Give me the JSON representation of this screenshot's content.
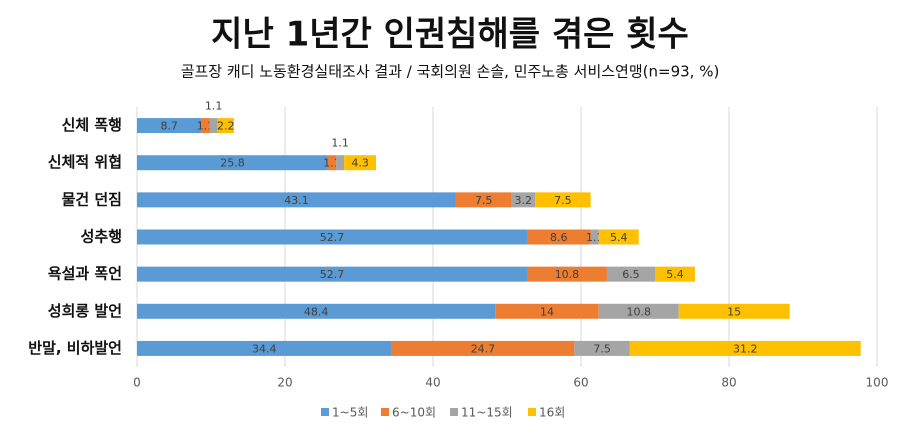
{
  "chart_data": {
    "type": "stacked-bar-horizontal",
    "title": "지난 1년간 인권침해를 겪은 횟수",
    "subtitle": "골프장 캐디 노동환경실태조사 결과 / 국회의원 손솔, 민주노총 서비스연맹(n=93, %)",
    "categories": [
      "신체 폭행",
      "신체적 위협",
      "물건 던짐",
      "성추행",
      "욕설과 폭언",
      "성희롱 발언",
      "반말, 비하발언"
    ],
    "series": [
      {
        "name": "1~5회",
        "color": "#5b9bd5",
        "values": [
          8.7,
          25.8,
          43.1,
          52.7,
          52.7,
          48.4,
          34.4
        ]
      },
      {
        "name": "6~10회",
        "color": "#ed7d31",
        "values": [
          1.1,
          1.1,
          7.5,
          8.6,
          10.8,
          14,
          24.7
        ]
      },
      {
        "name": "11~15회",
        "color": "#a5a5a5",
        "values": [
          1.1,
          1.1,
          3.2,
          1.1,
          6.5,
          10.8,
          7.5
        ]
      },
      {
        "name": "16회",
        "color": "#ffc000",
        "values": [
          2.2,
          4.3,
          7.5,
          5.4,
          5.4,
          15,
          31.2
        ]
      }
    ],
    "xlim": [
      0,
      100
    ],
    "xticks": [
      0,
      20,
      40,
      60,
      80,
      100
    ],
    "grid": true,
    "legend": "bottom"
  }
}
